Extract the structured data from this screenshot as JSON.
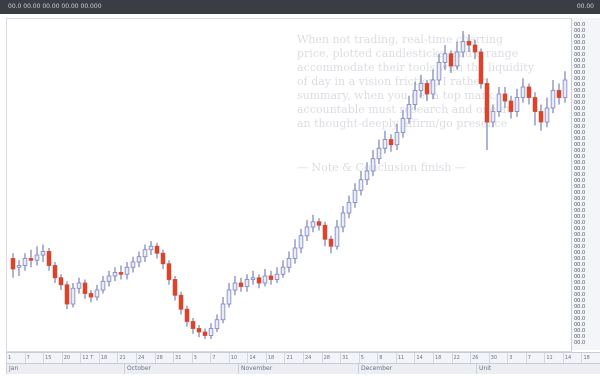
{
  "window": {
    "title": "00.0 00.00 00.00 00.00 00.000",
    "title_right": "00.00"
  },
  "background_text": [
    "When not trading, real-time charting",
    "price, plotted candlesticks, and a range",
    "accommodate their tools with the liquidity",
    "of day in a vision friction, I rather",
    "summary, when you get a top mark,",
    "accountable must research and one at",
    "an thought-deeply affirm/go presence",
    "— Note & Conclusion finish —"
  ],
  "price_axis": {
    "ticks": [
      "00.0",
      "00.0",
      "00.0",
      "00.0",
      "00.0",
      "00.0",
      "00.0",
      "00.0",
      "00.0",
      "00.0",
      "00.0",
      "00.0",
      "00.0",
      "00.0",
      "00.0",
      "00.0",
      "00.0",
      "00.0",
      "00.0",
      "00.0",
      "00.0",
      "00.0",
      "00.0",
      "00.0",
      "00.0",
      "00.0",
      "00.0",
      "00.0",
      "00.0",
      "00.0",
      "00.0",
      "00.0",
      "00.0",
      "00.0",
      "00.0",
      "00.0",
      "00.0",
      "00.0",
      "00.0",
      "00.0",
      "00.0",
      "00.0",
      "00.0",
      "00.0",
      "00.0",
      "00.0",
      "00.0",
      "00.0",
      "00.0",
      "00.0",
      "00.0",
      "00.0",
      "00.0",
      "00.0"
    ]
  },
  "date_bar": {
    "cells": [
      "1",
      "7",
      "15",
      "20",
      "12 T",
      "18",
      "21",
      "24",
      "28",
      "31",
      "3",
      "7",
      "10",
      "14",
      "18",
      "21",
      "24",
      "28",
      "31",
      "5",
      "8",
      "11",
      "14",
      "18",
      "22",
      "26",
      "30",
      "3",
      "7",
      "11",
      "14",
      "18"
    ]
  },
  "month_bar": {
    "cells": [
      "Jan",
      "October",
      "November",
      "December",
      "Unit"
    ]
  },
  "chart_data": {
    "type": "candlestick",
    "colors": {
      "up": "#e9ebf6",
      "up_edge": "#7c84c0",
      "down": "#d9442b",
      "wick": "#626aa8"
    },
    "candles": [
      {
        "o": 128,
        "c": 122,
        "h": 131,
        "l": 117
      },
      {
        "o": 123,
        "c": 124,
        "h": 127,
        "l": 118
      },
      {
        "o": 124,
        "c": 128,
        "h": 131,
        "l": 121
      },
      {
        "o": 128,
        "c": 127,
        "h": 133,
        "l": 123
      },
      {
        "o": 127,
        "c": 130,
        "h": 135,
        "l": 124
      },
      {
        "o": 130,
        "c": 132,
        "h": 136,
        "l": 126
      },
      {
        "o": 132,
        "c": 124,
        "h": 134,
        "l": 121
      },
      {
        "o": 124,
        "c": 117,
        "h": 126,
        "l": 114
      },
      {
        "o": 117,
        "c": 113,
        "h": 119,
        "l": 110
      },
      {
        "o": 113,
        "c": 102,
        "h": 115,
        "l": 99
      },
      {
        "o": 102,
        "c": 111,
        "h": 114,
        "l": 100
      },
      {
        "o": 111,
        "c": 114,
        "h": 117,
        "l": 108
      },
      {
        "o": 114,
        "c": 108,
        "h": 116,
        "l": 105
      },
      {
        "o": 108,
        "c": 106,
        "h": 110,
        "l": 103
      },
      {
        "o": 106,
        "c": 110,
        "h": 113,
        "l": 104
      },
      {
        "o": 110,
        "c": 115,
        "h": 118,
        "l": 108
      },
      {
        "o": 115,
        "c": 118,
        "h": 121,
        "l": 112
      },
      {
        "o": 118,
        "c": 120,
        "h": 123,
        "l": 115
      },
      {
        "o": 120,
        "c": 119,
        "h": 124,
        "l": 116
      },
      {
        "o": 119,
        "c": 123,
        "h": 126,
        "l": 116
      },
      {
        "o": 123,
        "c": 126,
        "h": 129,
        "l": 120
      },
      {
        "o": 126,
        "c": 129,
        "h": 132,
        "l": 123
      },
      {
        "o": 129,
        "c": 133,
        "h": 136,
        "l": 126
      },
      {
        "o": 133,
        "c": 135,
        "h": 138,
        "l": 130
      },
      {
        "o": 135,
        "c": 131,
        "h": 137,
        "l": 128
      },
      {
        "o": 131,
        "c": 125,
        "h": 133,
        "l": 122
      },
      {
        "o": 125,
        "c": 116,
        "h": 127,
        "l": 113
      },
      {
        "o": 116,
        "c": 107,
        "h": 118,
        "l": 104
      },
      {
        "o": 107,
        "c": 99,
        "h": 109,
        "l": 96
      },
      {
        "o": 99,
        "c": 92,
        "h": 101,
        "l": 89
      },
      {
        "o": 92,
        "c": 88,
        "h": 94,
        "l": 85
      },
      {
        "o": 88,
        "c": 86,
        "h": 90,
        "l": 83
      },
      {
        "o": 86,
        "c": 84,
        "h": 88,
        "l": 82
      },
      {
        "o": 84,
        "c": 88,
        "h": 91,
        "l": 82
      },
      {
        "o": 88,
        "c": 93,
        "h": 96,
        "l": 86
      },
      {
        "o": 93,
        "c": 102,
        "h": 106,
        "l": 91
      },
      {
        "o": 102,
        "c": 110,
        "h": 114,
        "l": 100
      },
      {
        "o": 110,
        "c": 114,
        "h": 118,
        "l": 107
      },
      {
        "o": 114,
        "c": 112,
        "h": 117,
        "l": 109
      },
      {
        "o": 112,
        "c": 116,
        "h": 119,
        "l": 109
      },
      {
        "o": 116,
        "c": 117,
        "h": 121,
        "l": 113
      },
      {
        "o": 117,
        "c": 114,
        "h": 119,
        "l": 111
      },
      {
        "o": 114,
        "c": 118,
        "h": 122,
        "l": 112
      },
      {
        "o": 118,
        "c": 116,
        "h": 121,
        "l": 113
      },
      {
        "o": 116,
        "c": 119,
        "h": 123,
        "l": 114
      },
      {
        "o": 119,
        "c": 123,
        "h": 127,
        "l": 117
      },
      {
        "o": 123,
        "c": 128,
        "h": 132,
        "l": 120
      },
      {
        "o": 128,
        "c": 134,
        "h": 139,
        "l": 125
      },
      {
        "o": 134,
        "c": 141,
        "h": 145,
        "l": 131
      },
      {
        "o": 141,
        "c": 146,
        "h": 150,
        "l": 138
      },
      {
        "o": 146,
        "c": 149,
        "h": 153,
        "l": 143
      },
      {
        "o": 149,
        "c": 147,
        "h": 151,
        "l": 144
      },
      {
        "o": 147,
        "c": 139,
        "h": 149,
        "l": 135
      },
      {
        "o": 139,
        "c": 135,
        "h": 141,
        "l": 131
      },
      {
        "o": 135,
        "c": 146,
        "h": 150,
        "l": 133
      },
      {
        "o": 146,
        "c": 154,
        "h": 158,
        "l": 143
      },
      {
        "o": 154,
        "c": 160,
        "h": 164,
        "l": 151
      },
      {
        "o": 160,
        "c": 167,
        "h": 171,
        "l": 157
      },
      {
        "o": 167,
        "c": 173,
        "h": 178,
        "l": 164
      },
      {
        "o": 173,
        "c": 178,
        "h": 183,
        "l": 170
      },
      {
        "o": 178,
        "c": 185,
        "h": 190,
        "l": 175
      },
      {
        "o": 185,
        "c": 191,
        "h": 196,
        "l": 182
      },
      {
        "o": 191,
        "c": 196,
        "h": 201,
        "l": 188
      },
      {
        "o": 196,
        "c": 193,
        "h": 199,
        "l": 189
      },
      {
        "o": 193,
        "c": 200,
        "h": 205,
        "l": 190
      },
      {
        "o": 200,
        "c": 208,
        "h": 213,
        "l": 197
      },
      {
        "o": 208,
        "c": 216,
        "h": 221,
        "l": 205
      },
      {
        "o": 216,
        "c": 224,
        "h": 229,
        "l": 213
      },
      {
        "o": 224,
        "c": 228,
        "h": 233,
        "l": 220
      },
      {
        "o": 228,
        "c": 222,
        "h": 230,
        "l": 218
      },
      {
        "o": 222,
        "c": 230,
        "h": 236,
        "l": 219
      },
      {
        "o": 230,
        "c": 240,
        "h": 245,
        "l": 227
      },
      {
        "o": 240,
        "c": 245,
        "h": 250,
        "l": 236
      },
      {
        "o": 245,
        "c": 238,
        "h": 247,
        "l": 234
      },
      {
        "o": 238,
        "c": 246,
        "h": 252,
        "l": 236
      },
      {
        "o": 246,
        "c": 252,
        "h": 258,
        "l": 243
      },
      {
        "o": 252,
        "c": 250,
        "h": 256,
        "l": 246
      },
      {
        "o": 250,
        "c": 246,
        "h": 253,
        "l": 242
      },
      {
        "o": 246,
        "c": 228,
        "h": 248,
        "l": 225
      },
      {
        "o": 228,
        "c": 206,
        "h": 231,
        "l": 190
      },
      {
        "o": 206,
        "c": 212,
        "h": 216,
        "l": 203
      },
      {
        "o": 212,
        "c": 222,
        "h": 226,
        "l": 209
      },
      {
        "o": 222,
        "c": 218,
        "h": 226,
        "l": 214
      },
      {
        "o": 218,
        "c": 212,
        "h": 221,
        "l": 208
      },
      {
        "o": 212,
        "c": 220,
        "h": 225,
        "l": 209
      },
      {
        "o": 220,
        "c": 226,
        "h": 231,
        "l": 217
      },
      {
        "o": 226,
        "c": 220,
        "h": 228,
        "l": 216
      },
      {
        "o": 220,
        "c": 212,
        "h": 223,
        "l": 204
      },
      {
        "o": 212,
        "c": 206,
        "h": 216,
        "l": 201
      },
      {
        "o": 206,
        "c": 214,
        "h": 220,
        "l": 203
      },
      {
        "o": 214,
        "c": 224,
        "h": 230,
        "l": 211
      },
      {
        "o": 224,
        "c": 220,
        "h": 228,
        "l": 216
      },
      {
        "o": 220,
        "c": 230,
        "h": 235,
        "l": 217
      }
    ],
    "xlabel": "",
    "ylabel": ""
  }
}
